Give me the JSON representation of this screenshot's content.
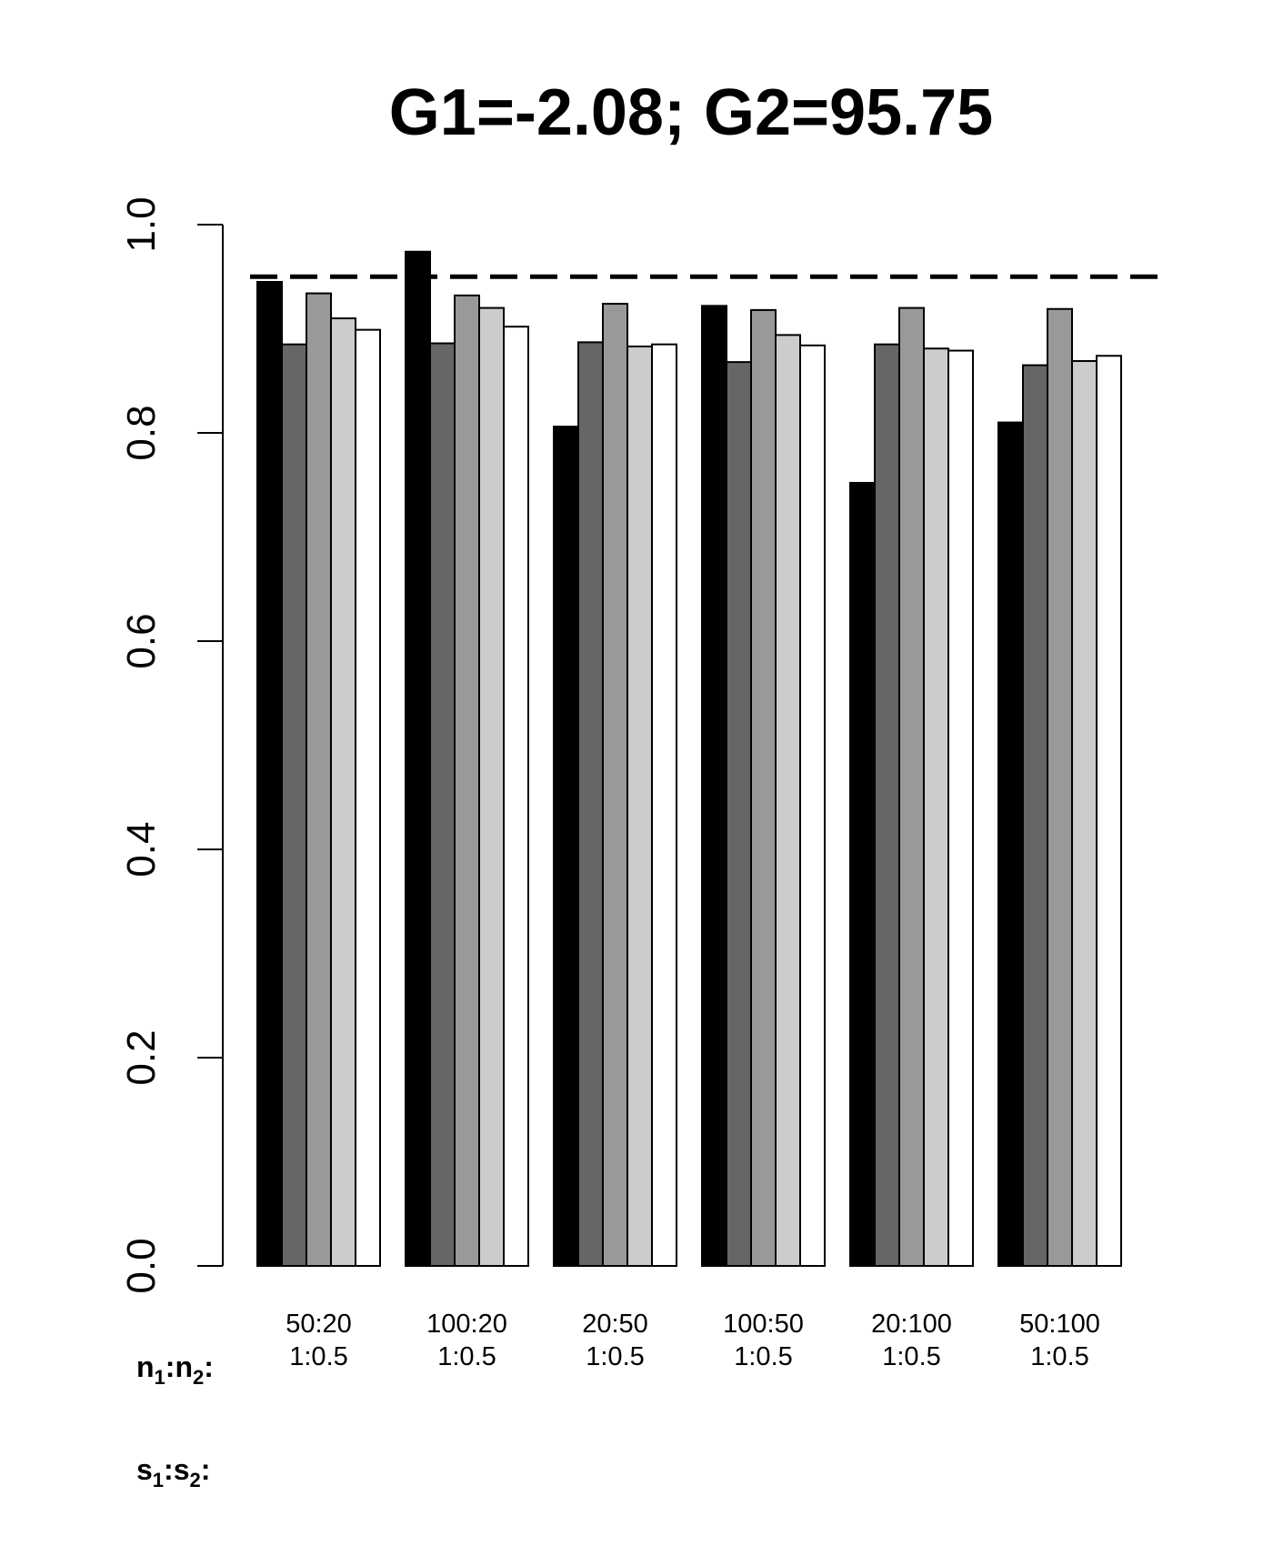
{
  "chart_data": {
    "type": "bar",
    "title": "G1=-2.08; G2=95.75",
    "xlabel": "",
    "ylabel": "",
    "ylim": [
      0,
      1.0
    ],
    "yticks": [
      "0.0",
      "0.2",
      "0.4",
      "0.6",
      "0.8",
      "1.0"
    ],
    "reference_line": {
      "y": 0.95,
      "style": "dashed"
    },
    "categories": [
      {
        "n": "50:20",
        "s": "1:0.5"
      },
      {
        "n": "100:20",
        "s": "1:0.5"
      },
      {
        "n": "20:50",
        "s": "1:0.5"
      },
      {
        "n": "100:50",
        "s": "1:0.5"
      },
      {
        "n": "20:100",
        "s": "1:0.5"
      },
      {
        "n": "50:100",
        "s": "1:0.5"
      }
    ],
    "row_labels": {
      "n": {
        "base": "n",
        "sub1": "1",
        "sep": ":",
        "sub2": "2",
        "end": ":"
      },
      "s": {
        "base": "s",
        "sub1": "1",
        "sep": ":",
        "sub2": "2",
        "end": ":"
      }
    },
    "series_colors": [
      "#000000",
      "#666666",
      "#999999",
      "#cccccc",
      "#ffffff"
    ],
    "series": [
      {
        "values": [
          0.945,
          0.974,
          0.806,
          0.922,
          0.752,
          0.81
        ]
      },
      {
        "values": [
          0.885,
          0.886,
          0.887,
          0.868,
          0.885,
          0.865
        ]
      },
      {
        "values": [
          0.934,
          0.932,
          0.924,
          0.918,
          0.92,
          0.919
        ]
      },
      {
        "values": [
          0.91,
          0.92,
          0.883,
          0.894,
          0.881,
          0.869
        ]
      },
      {
        "values": [
          0.899,
          0.902,
          0.885,
          0.884,
          0.879,
          0.874
        ]
      }
    ],
    "grid": false,
    "legend": "none"
  }
}
